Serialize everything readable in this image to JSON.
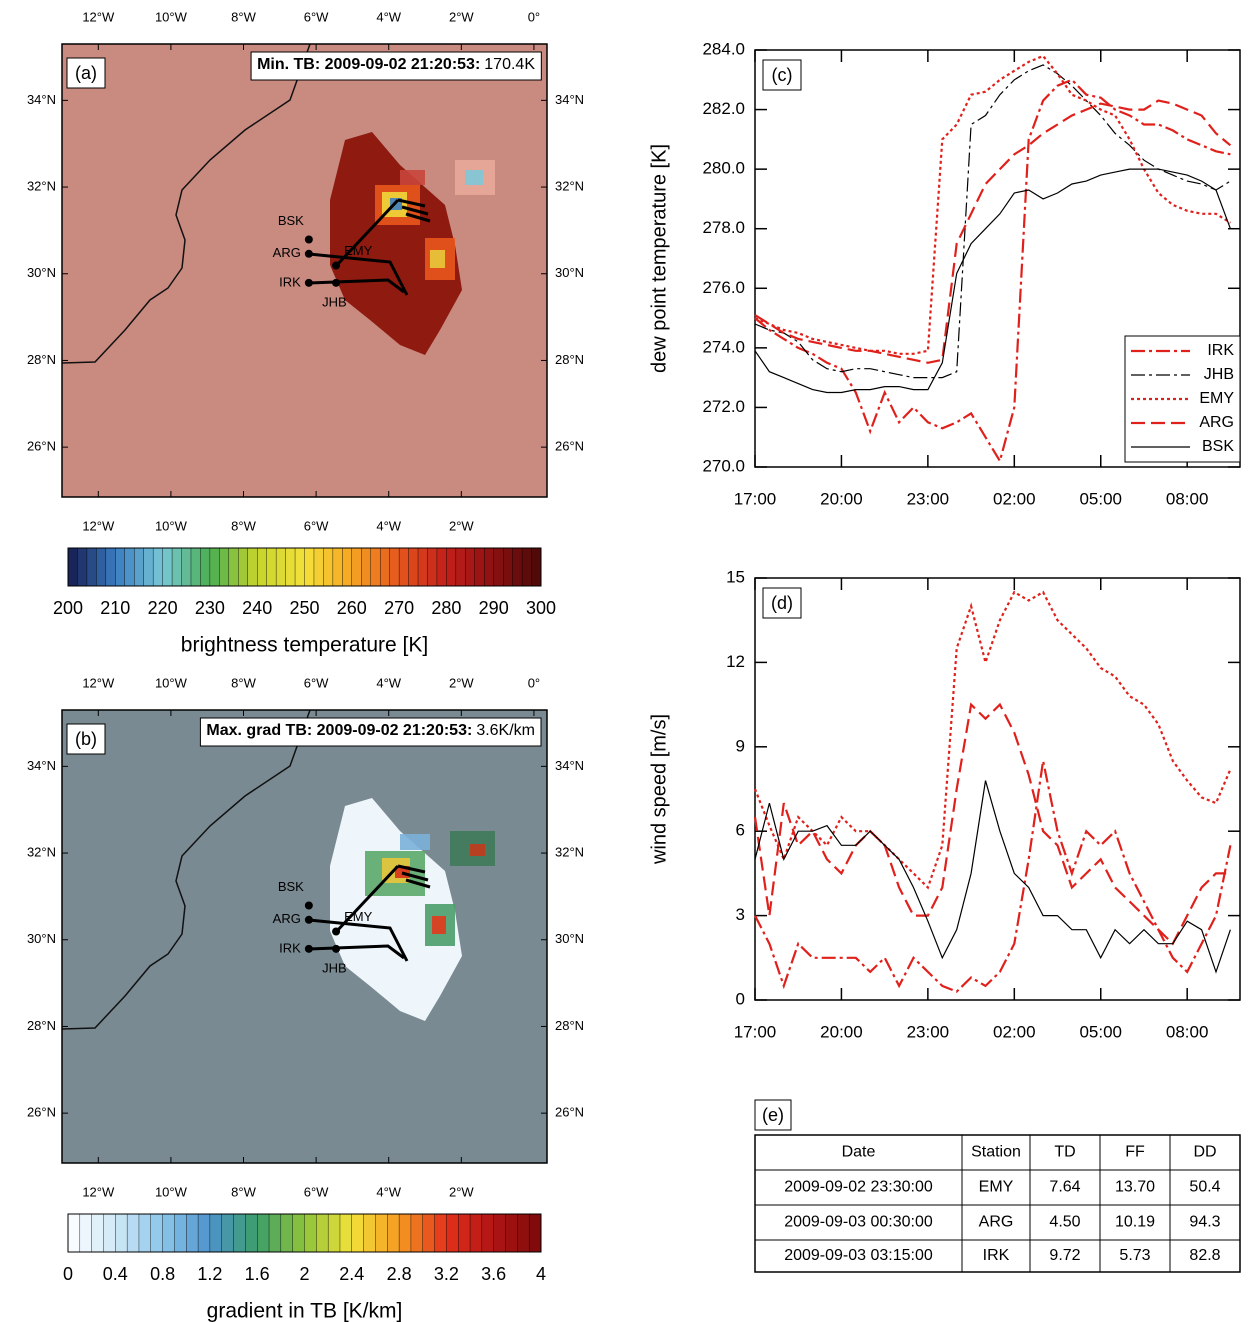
{
  "maps": [
    {
      "tag": "(a)",
      "title": "Min. TB: 2009-09-02 21:20:53:",
      "title_value": "170.4K",
      "background": "#c98a80",
      "xlim": [
        -13,
        0.36
      ],
      "ylim": [
        24.85,
        35.3
      ],
      "xticks_top": [
        {
          "value": -12,
          "label": "12°W"
        },
        {
          "value": -10,
          "label": "10°W"
        },
        {
          "value": -8,
          "label": "8°W"
        },
        {
          "value": -6,
          "label": "6°W"
        },
        {
          "value": -4,
          "label": "4°W"
        },
        {
          "value": -2,
          "label": "2°W"
        },
        {
          "value": 0,
          "label": "0°"
        }
      ],
      "xticks": [
        {
          "value": -12,
          "label": "12°W"
        },
        {
          "value": -10,
          "label": "10°W"
        },
        {
          "value": -8,
          "label": "8°W"
        },
        {
          "value": -6,
          "label": "6°W"
        },
        {
          "value": -4,
          "label": "4°W"
        },
        {
          "value": -2,
          "label": "2°W"
        }
      ],
      "yticks": [
        {
          "value": 26,
          "label": "26°N"
        },
        {
          "value": 28,
          "label": "28°N"
        },
        {
          "value": 30,
          "label": "30°N"
        },
        {
          "value": 32,
          "label": "32°N"
        },
        {
          "value": 34,
          "label": "34°N"
        }
      ],
      "stations": [
        {
          "name": "BSK",
          "lon": -6.2,
          "lat": 30.79
        },
        {
          "name": "ARG",
          "lon": -6.2,
          "lat": 30.46
        },
        {
          "name": "EMY",
          "lon": -5.45,
          "lat": 30.19
        },
        {
          "name": "IRK",
          "lon": -6.2,
          "lat": 29.79
        },
        {
          "name": "JHB",
          "lon": -5.45,
          "lat": 29.79
        }
      ],
      "colorbar": {
        "label": "brightness temperature [K]",
        "clim": [
          200,
          300
        ],
        "step": 2,
        "ticks": [
          200,
          210,
          220,
          230,
          240,
          250,
          260,
          270,
          280,
          290,
          300
        ],
        "colors": [
          "#151a4e",
          "#3a7cc0",
          "#79c7d6",
          "#4aae52",
          "#c6d52c",
          "#f4e13a",
          "#f5a522",
          "#e4551d",
          "#c21f1a",
          "#8c1111",
          "#4a0808"
        ]
      }
    },
    {
      "tag": "(b)",
      "title": "Max. grad TB: 2009-09-02 21:20:53:",
      "title_value": "3.6K/km",
      "background": "#7a8a92",
      "xlim": [
        -13,
        0.36
      ],
      "ylim": [
        24.85,
        35.3
      ],
      "xticks_top": [
        {
          "value": -12,
          "label": "12°W"
        },
        {
          "value": -10,
          "label": "10°W"
        },
        {
          "value": -8,
          "label": "8°W"
        },
        {
          "value": -6,
          "label": "6°W"
        },
        {
          "value": -4,
          "label": "4°W"
        },
        {
          "value": -2,
          "label": "2°W"
        },
        {
          "value": 0,
          "label": "0°"
        }
      ],
      "xticks": [
        {
          "value": -12,
          "label": "12°W"
        },
        {
          "value": -10,
          "label": "10°W"
        },
        {
          "value": -8,
          "label": "8°W"
        },
        {
          "value": -6,
          "label": "6°W"
        },
        {
          "value": -4,
          "label": "4°W"
        },
        {
          "value": -2,
          "label": "2°W"
        }
      ],
      "yticks": [
        {
          "value": 26,
          "label": "26°N"
        },
        {
          "value": 28,
          "label": "28°N"
        },
        {
          "value": 30,
          "label": "30°N"
        },
        {
          "value": 32,
          "label": "32°N"
        },
        {
          "value": 34,
          "label": "34°N"
        }
      ],
      "stations": [
        {
          "name": "BSK",
          "lon": -6.2,
          "lat": 30.79
        },
        {
          "name": "ARG",
          "lon": -6.2,
          "lat": 30.46
        },
        {
          "name": "EMY",
          "lon": -5.45,
          "lat": 30.19
        },
        {
          "name": "IRK",
          "lon": -6.2,
          "lat": 29.79
        },
        {
          "name": "JHB",
          "lon": -5.45,
          "lat": 29.79
        }
      ],
      "colorbar": {
        "label": "gradient in TB [K/km]",
        "clim": [
          0,
          4
        ],
        "step": 0.1,
        "ticks": [
          0,
          0.4,
          0.8,
          1.2,
          1.6,
          2,
          2.4,
          2.8,
          3.2,
          3.6,
          4
        ],
        "colors": [
          "#ffffff",
          "#cfe8f6",
          "#8cc6ea",
          "#4d93cc",
          "#3d9e6a",
          "#8fc43a",
          "#f2e23a",
          "#f59a22",
          "#e2311c",
          "#b11414",
          "#7a0a0a"
        ]
      }
    }
  ],
  "chart_data": [
    {
      "type": "line",
      "tag": "(c)",
      "ylabel": "dew point temperature [K]",
      "x": [
        "17:00",
        "17:30",
        "18:00",
        "18:30",
        "19:00",
        "19:30",
        "20:00",
        "20:30",
        "21:00",
        "21:30",
        "22:00",
        "22:30",
        "23:00",
        "23:30",
        "00:00",
        "00:30",
        "01:00",
        "01:30",
        "02:00",
        "02:30",
        "03:00",
        "03:30",
        "04:00",
        "04:30",
        "05:00",
        "05:30",
        "06:00",
        "06:30",
        "07:00",
        "07:30",
        "08:00",
        "08:30",
        "09:00",
        "09:30"
      ],
      "xlim": [
        "17:00",
        "09:50"
      ],
      "xticks": [
        "17:00",
        "20:00",
        "23:00",
        "02:00",
        "05:00",
        "08:00"
      ],
      "ylim": [
        270,
        284
      ],
      "yticks": [
        {
          "value": 270,
          "label": "270.0"
        },
        {
          "value": 272,
          "label": "272.0"
        },
        {
          "value": 274,
          "label": "274.0"
        },
        {
          "value": 276,
          "label": "276.0"
        },
        {
          "value": 278,
          "label": "278.0"
        },
        {
          "value": 280,
          "label": "280.0"
        },
        {
          "value": 282,
          "label": "282.0"
        },
        {
          "value": 284,
          "label": "284.0"
        }
      ],
      "legend": "lower right",
      "series": [
        {
          "name": "IRK",
          "color": "#e0201b",
          "linestyle": "dash-dot",
          "values": [
            275.0,
            274.6,
            274.3,
            274.0,
            273.8,
            273.5,
            273.3,
            272.5,
            271.2,
            272.5,
            271.5,
            272.0,
            271.5,
            271.3,
            271.5,
            271.8,
            271.0,
            270.2,
            272.0,
            281.0,
            282.3,
            282.8,
            283.0,
            282.5,
            282.4,
            282.0,
            281.8,
            281.5,
            281.5,
            281.3,
            281.0,
            280.8,
            280.6,
            280.5
          ]
        },
        {
          "name": "JHB",
          "color": "#000000",
          "linestyle": "dash-dot",
          "values": [
            274.8,
            274.6,
            274.5,
            274.2,
            273.6,
            273.3,
            273.2,
            273.3,
            273.3,
            273.2,
            273.1,
            273.0,
            273.0,
            273.0,
            273.2,
            281.5,
            281.8,
            282.5,
            283.0,
            283.3,
            283.5,
            283.2,
            282.8,
            282.3,
            281.8,
            281.2,
            280.8,
            280.3,
            280.0,
            279.8,
            279.6,
            279.5,
            279.3,
            279.6
          ]
        },
        {
          "name": "EMY",
          "color": "#e0201b",
          "linestyle": "dotted",
          "values": [
            275.0,
            274.8,
            274.6,
            274.5,
            274.3,
            274.2,
            274.1,
            274.0,
            273.9,
            273.9,
            273.8,
            273.8,
            273.9,
            281.0,
            281.5,
            282.5,
            282.6,
            283.0,
            283.3,
            283.6,
            283.8,
            283.2,
            282.5,
            282.3,
            282.0,
            281.8,
            281.0,
            280.0,
            279.2,
            278.8,
            278.6,
            278.5,
            278.5,
            278.2
          ]
        },
        {
          "name": "ARG",
          "color": "#e0201b",
          "linestyle": "dashed",
          "values": [
            275.1,
            274.8,
            274.5,
            274.3,
            274.2,
            274.1,
            274.0,
            273.9,
            273.9,
            273.8,
            273.7,
            273.6,
            273.5,
            273.6,
            277.5,
            278.5,
            279.5,
            280.0,
            280.5,
            280.8,
            281.2,
            281.5,
            281.8,
            282.0,
            282.2,
            282.1,
            282.0,
            282.0,
            282.3,
            282.2,
            282.0,
            281.8,
            281.2,
            280.8
          ]
        },
        {
          "name": "BSK",
          "color": "#000000",
          "linestyle": "solid",
          "values": [
            273.9,
            273.2,
            273.0,
            272.8,
            272.6,
            272.5,
            272.5,
            272.6,
            272.6,
            272.7,
            272.7,
            272.6,
            272.6,
            273.5,
            276.5,
            277.5,
            278.0,
            278.5,
            279.2,
            279.3,
            279.0,
            279.2,
            279.5,
            279.6,
            279.8,
            279.9,
            280.0,
            280.0,
            280.0,
            279.9,
            279.8,
            279.6,
            279.3,
            278.0
          ]
        }
      ]
    },
    {
      "type": "line",
      "tag": "(d)",
      "ylabel": "wind speed [m/s]",
      "x": [
        "17:00",
        "17:30",
        "18:00",
        "18:30",
        "19:00",
        "19:30",
        "20:00",
        "20:30",
        "21:00",
        "21:30",
        "22:00",
        "22:30",
        "23:00",
        "23:30",
        "00:00",
        "00:30",
        "01:00",
        "01:30",
        "02:00",
        "02:30",
        "03:00",
        "03:30",
        "04:00",
        "04:30",
        "05:00",
        "05:30",
        "06:00",
        "06:30",
        "07:00",
        "07:30",
        "08:00",
        "08:30",
        "09:00",
        "09:30"
      ],
      "xlim": [
        "17:00",
        "09:50"
      ],
      "xticks": [
        "17:00",
        "20:00",
        "23:00",
        "02:00",
        "05:00",
        "08:00"
      ],
      "ylim": [
        0,
        15
      ],
      "yticks": [
        0,
        3,
        6,
        9,
        12,
        15
      ],
      "series": [
        {
          "color": "#e0201b",
          "linestyle": "dotted",
          "values": [
            7.5,
            6.2,
            5.0,
            6.5,
            6.0,
            5.5,
            6.5,
            6.0,
            6.0,
            5.5,
            5.0,
            4.5,
            4.0,
            5.5,
            12.5,
            14.0,
            12.0,
            13.5,
            14.5,
            14.2,
            14.5,
            13.5,
            13.0,
            12.5,
            11.8,
            11.5,
            10.8,
            10.5,
            9.8,
            8.5,
            7.8,
            7.2,
            7.0,
            8.2
          ]
        },
        {
          "color": "#e0201b",
          "linestyle": "dashed",
          "values": [
            6.5,
            3.0,
            7.0,
            5.5,
            6.0,
            5.0,
            4.5,
            5.5,
            6.0,
            5.5,
            4.0,
            3.0,
            3.0,
            4.0,
            7.5,
            10.5,
            10.0,
            10.5,
            9.5,
            8.0,
            6.0,
            5.5,
            4.0,
            4.5,
            5.0,
            4.0,
            3.5,
            3.0,
            2.5,
            2.0,
            3.0,
            4.0,
            4.5,
            4.5
          ]
        },
        {
          "color": "#e0201b",
          "linestyle": "dash-dot",
          "values": [
            3.0,
            2.0,
            0.5,
            2.0,
            1.5,
            1.5,
            1.5,
            1.5,
            1.0,
            1.5,
            0.5,
            1.5,
            1.0,
            0.5,
            0.3,
            0.8,
            0.5,
            1.0,
            2.0,
            5.0,
            8.5,
            6.0,
            4.5,
            6.0,
            5.5,
            6.0,
            4.5,
            3.5,
            2.5,
            1.5,
            1.0,
            2.0,
            3.0,
            5.5
          ]
        },
        {
          "color": "#000000",
          "linestyle": "solid",
          "values": [
            5.0,
            7.0,
            5.0,
            6.0,
            6.0,
            6.2,
            5.5,
            5.5,
            6.0,
            5.5,
            5.0,
            4.0,
            2.8,
            1.5,
            2.5,
            4.5,
            7.8,
            6.0,
            4.5,
            4.0,
            3.0,
            3.0,
            2.5,
            2.5,
            1.5,
            2.5,
            2.0,
            2.5,
            2.0,
            2.0,
            2.8,
            2.5,
            1.0,
            2.5
          ]
        }
      ]
    }
  ],
  "table": {
    "tag": "(e)",
    "header": [
      "Date",
      "Station",
      "TD",
      "FF",
      "DD"
    ],
    "rows": [
      [
        "2009-09-02 23:30:00",
        "EMY",
        "7.64",
        "13.70",
        "50.4"
      ],
      [
        "2009-09-03 00:30:00",
        "ARG",
        "4.50",
        "10.19",
        "94.3"
      ],
      [
        "2009-09-03 03:15:00",
        "IRK",
        "9.72",
        "5.73",
        "82.8"
      ]
    ]
  }
}
